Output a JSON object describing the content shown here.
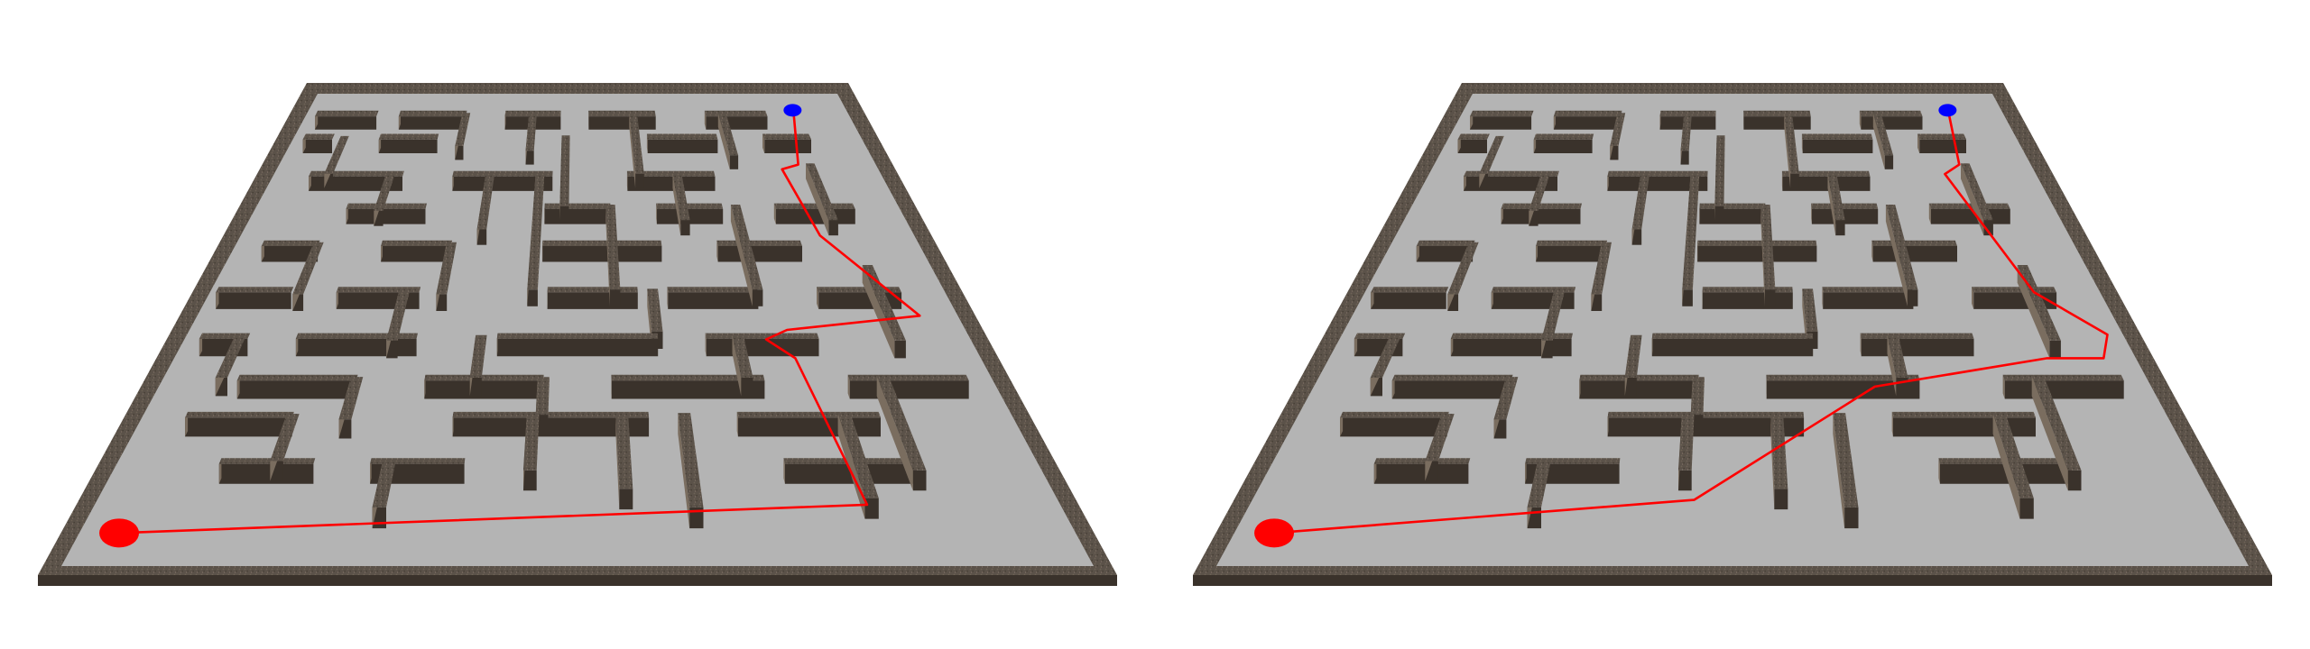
{
  "scene": {
    "description_shown": "",
    "colors": {
      "background": "#ffffff",
      "floor": "#b4b4b4",
      "wall_top": "#5b5249",
      "wall_face": "#3a322b",
      "wall_side": "#7a6d5f",
      "path": "#ff0000",
      "start_marker": "#ff0000",
      "goal_marker": "#0000ff"
    }
  },
  "panels": [
    {
      "id": "left",
      "route": "zigzag"
    },
    {
      "id": "right",
      "route": "smooth"
    }
  ]
}
